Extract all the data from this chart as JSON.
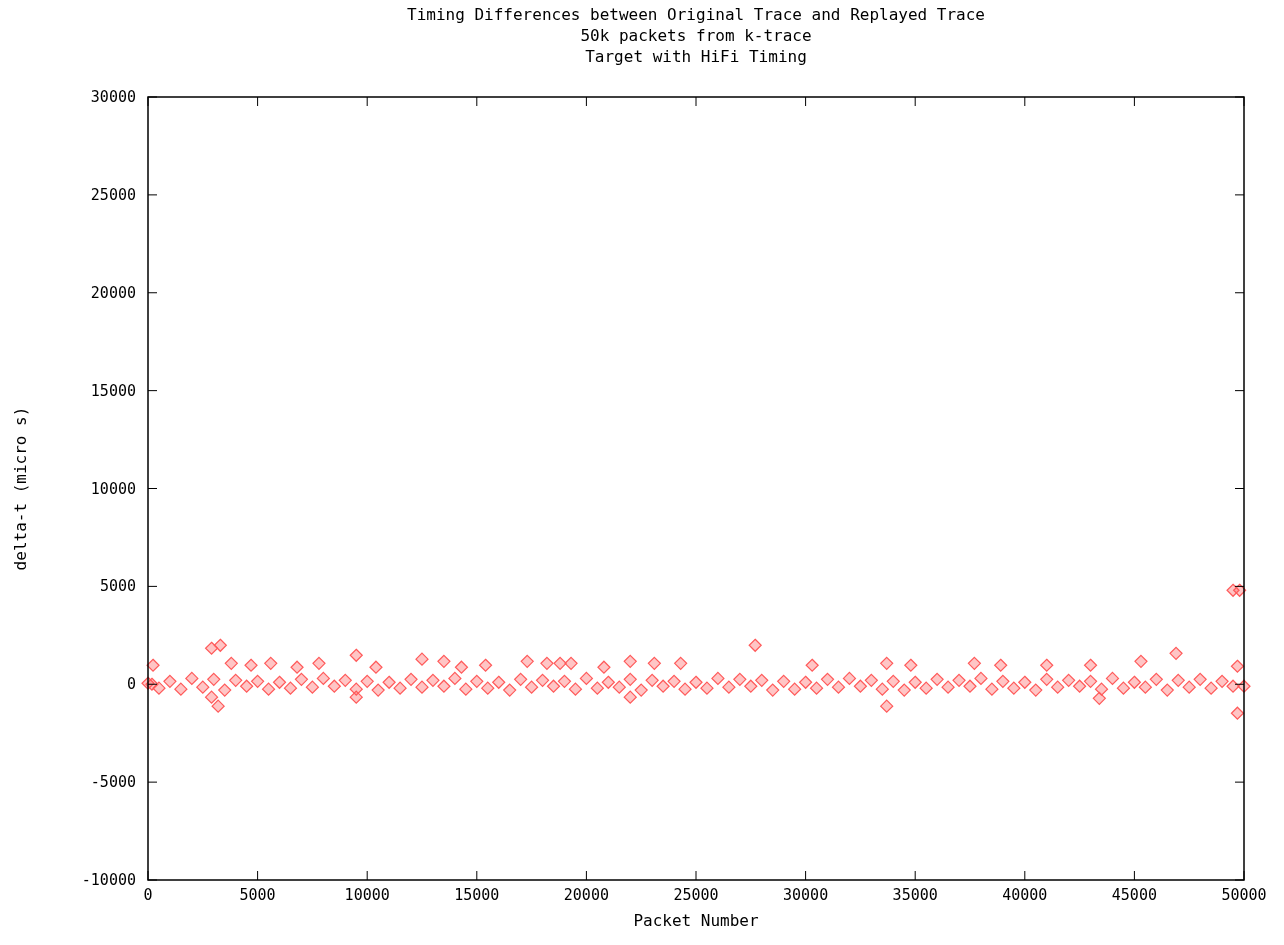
{
  "chart_data": {
    "type": "scatter",
    "title": "Timing Differences between Original Trace and Replayed Trace",
    "subtitle": "50k packets from k-trace",
    "annotations": [
      "Target with HiFi Timing"
    ],
    "xlabel": "Packet Number",
    "ylabel": "delta-t (micro s)",
    "xlim": [
      0,
      50000
    ],
    "ylim": [
      -10000,
      30000
    ],
    "xticks": [
      0,
      5000,
      10000,
      15000,
      20000,
      25000,
      30000,
      35000,
      40000,
      45000,
      50000
    ],
    "yticks": [
      -10000,
      -5000,
      0,
      5000,
      10000,
      15000,
      20000,
      25000,
      30000
    ],
    "grid": false,
    "marker": "diamond",
    "series": [
      {
        "color": "#ff5a5a",
        "x": [
          180,
          230,
          2900,
          3300,
          3200,
          2900,
          3800,
          4700,
          5600,
          6800,
          7800,
          9500,
          9500,
          10400,
          12500,
          13500,
          14300,
          15400,
          17300,
          18200,
          18800,
          19300,
          20800,
          22000,
          22000,
          23100,
          24300,
          27700,
          30300,
          33700,
          33700,
          34800,
          37700,
          38900,
          41000,
          43000,
          43400,
          45300,
          46900,
          49500,
          49800,
          49700,
          49700,
          0,
          500,
          1000,
          1500,
          2000,
          2500,
          3000,
          3500,
          4000,
          4500,
          5000,
          5500,
          6000,
          6500,
          7000,
          7500,
          8000,
          8500,
          9000,
          9500,
          10000,
          10500,
          11000,
          11500,
          12000,
          12500,
          13000,
          13500,
          14000,
          14500,
          15000,
          15500,
          16000,
          16500,
          17000,
          17500,
          18000,
          18500,
          19000,
          19500,
          20000,
          20500,
          21000,
          21500,
          22000,
          22500,
          23000,
          23500,
          24000,
          24500,
          25000,
          25500,
          26000,
          26500,
          27000,
          27500,
          28000,
          28500,
          29000,
          29500,
          30000,
          30500,
          31000,
          31500,
          32000,
          32500,
          33000,
          33500,
          34000,
          34500,
          35000,
          35500,
          36000,
          36500,
          37000,
          37500,
          38000,
          38500,
          39000,
          39500,
          40000,
          40500,
          41000,
          41500,
          42000,
          42500,
          43000,
          43500,
          44000,
          44500,
          45000,
          45500,
          46000,
          46500,
          47000,
          47500,
          48000,
          48500,
          49000,
          49500,
          50000
        ],
        "values": [
          0,
          970,
          1840,
          1990,
          -1120,
          -660,
          1070,
          970,
          1070,
          870,
          1070,
          1480,
          -660,
          870,
          1280,
          1170,
          870,
          970,
          1170,
          1070,
          1070,
          1070,
          870,
          1170,
          -660,
          1070,
          1070,
          1990,
          970,
          1070,
          -1120,
          970,
          1070,
          970,
          970,
          970,
          -720,
          1170,
          1580,
          4800,
          4800,
          -1480,
          920,
          50,
          -200,
          150,
          -250,
          300,
          -150,
          250,
          -300,
          200,
          -100,
          150,
          -250,
          100,
          -200,
          250,
          -150,
          300,
          -100,
          200,
          -250,
          150,
          -300,
          100,
          -200,
          250,
          -150,
          200,
          -100,
          300,
          -250,
          150,
          -200,
          100,
          -300,
          250,
          -150,
          200,
          -100,
          150,
          -250,
          300,
          -200,
          100,
          -150,
          250,
          -300,
          200,
          -100,
          150,
          -250,
          100,
          -200,
          300,
          -150,
          250,
          -100,
          200,
          -300,
          150,
          -250,
          100,
          -200,
          250,
          -150,
          300,
          -100,
          200,
          -250,
          150,
          -300,
          100,
          -200,
          250,
          -150,
          200,
          -100,
          300,
          -250,
          150,
          -200,
          100,
          -300,
          250,
          -150,
          200,
          -100,
          150,
          -250,
          300,
          -200,
          100,
          -150,
          250,
          -300,
          200,
          -150,
          250,
          -200,
          150,
          -100,
          -100
        ]
      }
    ]
  }
}
